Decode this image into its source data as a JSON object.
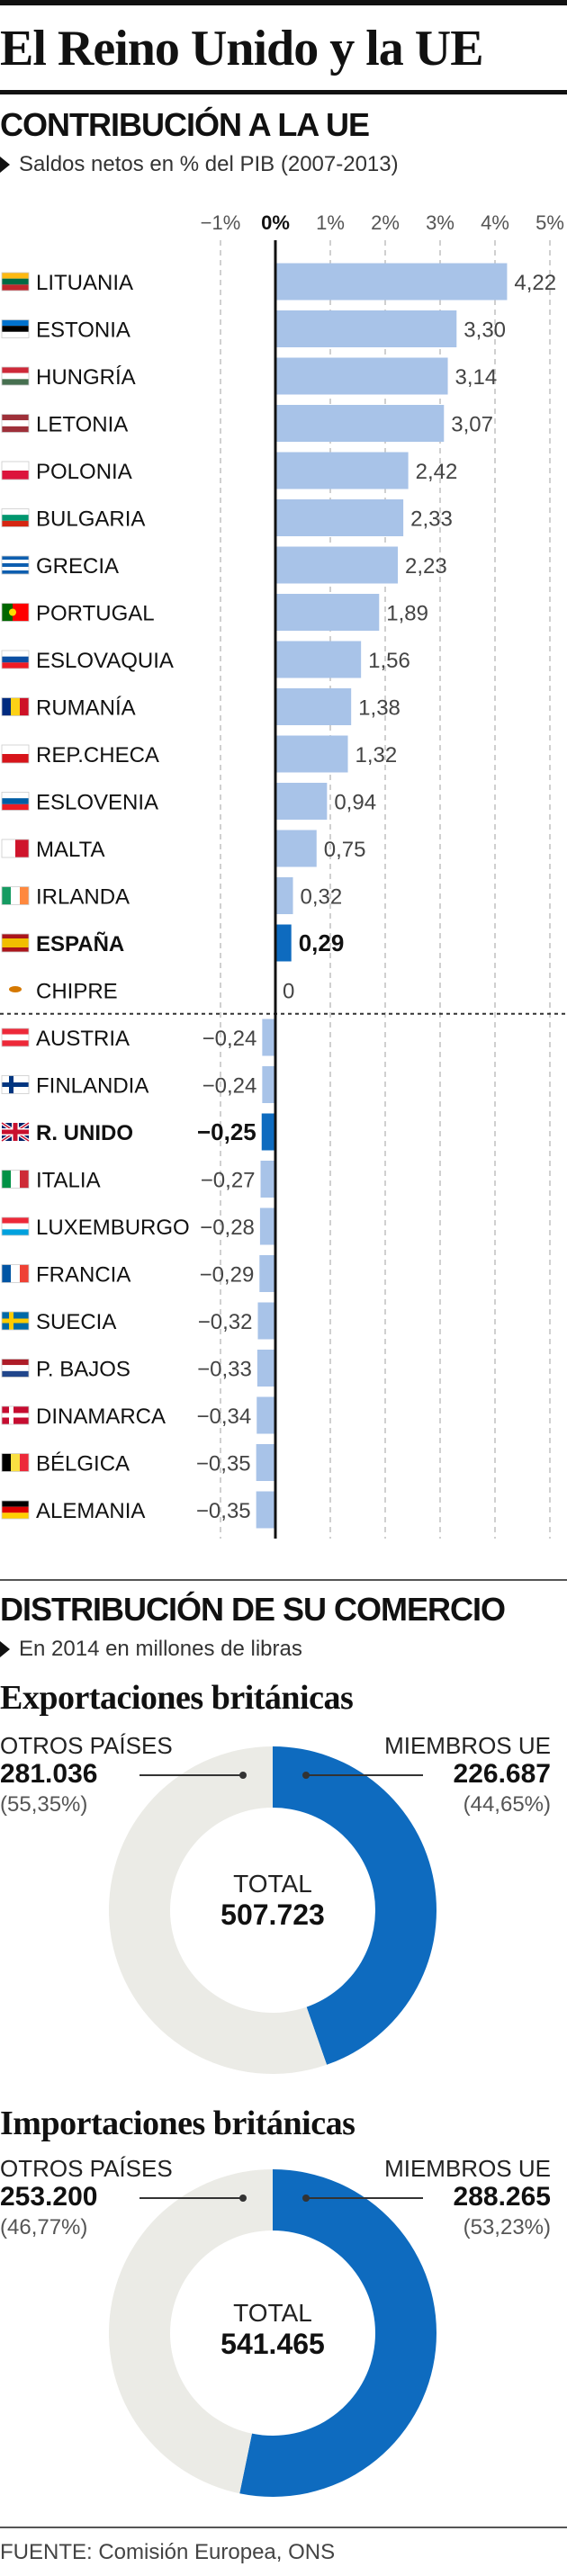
{
  "headline": "El Reino Unido y la UE",
  "contribution": {
    "title": "CONTRIBUCIÓN A LA UE",
    "subtitle": "Saldos netos en % del PIB (2007-2013)"
  },
  "colors": {
    "bar": "#a8c3e8",
    "highlight": "#0e6bbf",
    "grid": "#d0d0d0",
    "donut_main": "#0e6bbf",
    "donut_rest": "#ebebe6"
  },
  "chart_data": [
    {
      "type": "bar",
      "orientation": "horizontal",
      "title": "CONTRIBUCIÓN A LA UE",
      "subtitle": "Saldos netos en % del PIB (2007-2013)",
      "xlim": [
        -1,
        5
      ],
      "ticks": [
        -1,
        0,
        1,
        2,
        3,
        4,
        5
      ],
      "tick_labels": [
        "−1%",
        "0%",
        "1%",
        "2%",
        "3%",
        "4%",
        "5%"
      ],
      "grid": true,
      "categories": [
        "LITUANIA",
        "ESTONIA",
        "HUNGRÍA",
        "LETONIA",
        "POLONIA",
        "BULGARIA",
        "GRECIA",
        "PORTUGAL",
        "ESLOVAQUIA",
        "RUMANÍA",
        "REP.CHECA",
        "ESLOVENIA",
        "MALTA",
        "IRLANDA",
        "ESPAÑA",
        "CHIPRE",
        "AUSTRIA",
        "FINLANDIA",
        "R. UNIDO",
        "ITALIA",
        "LUXEMBURGO",
        "FRANCIA",
        "SUECIA",
        "P. BAJOS",
        "DINAMARCA",
        "BÉLGICA",
        "ALEMANIA"
      ],
      "values": [
        4.22,
        3.3,
        3.14,
        3.07,
        2.42,
        2.33,
        2.23,
        1.89,
        1.56,
        1.38,
        1.32,
        0.94,
        0.75,
        0.32,
        0.29,
        0,
        -0.24,
        -0.24,
        -0.25,
        -0.27,
        -0.28,
        -0.29,
        -0.32,
        -0.33,
        -0.34,
        -0.35,
        -0.35
      ],
      "value_labels": [
        "4,22",
        "3,30",
        "3,14",
        "3,07",
        "2,42",
        "2,33",
        "2,23",
        "1,89",
        "1,56",
        "1,38",
        "1,32",
        "0,94",
        "0,75",
        "0,32",
        "0,29",
        "0",
        "−0,24",
        "−0,24",
        "−0,25",
        "−0,27",
        "−0,28",
        "−0,29",
        "−0,32",
        "−0,33",
        "−0,34",
        "−0,35",
        "−0,35"
      ],
      "highlighted": [
        "ESPAÑA",
        "R. UNIDO"
      ],
      "flags": [
        "lithuania-flag",
        "estonia-flag",
        "hungary-flag",
        "latvia-flag",
        "poland-flag",
        "bulgaria-flag",
        "greece-flag",
        "portugal-flag",
        "slovakia-flag",
        "romania-flag",
        "czech-flag",
        "slovenia-flag",
        "malta-flag",
        "ireland-flag",
        "spain-flag",
        "cyprus-flag",
        "austria-flag",
        "finland-flag",
        "uk-flag",
        "italy-flag",
        "luxembourg-flag",
        "france-flag",
        "sweden-flag",
        "netherlands-flag",
        "denmark-flag",
        "belgium-flag",
        "germany-flag"
      ]
    },
    {
      "type": "pie",
      "variant": "donut",
      "title": "Exportaciones británicas",
      "slices": [
        {
          "name": "MIEMBROS UE",
          "value": 226687,
          "value_label": "226.687",
          "pct_label": "(44,65%)"
        },
        {
          "name": "OTROS PAÍSES",
          "value": 281036,
          "value_label": "281.036",
          "pct_label": "(55,35%)"
        }
      ],
      "total_label": "TOTAL",
      "total_value": "507.723"
    },
    {
      "type": "pie",
      "variant": "donut",
      "title": "Importaciones británicas",
      "slices": [
        {
          "name": "MIEMBROS UE",
          "value": 288265,
          "value_label": "288.265",
          "pct_label": "(53,23%)"
        },
        {
          "name": "OTROS PAÍSES",
          "value": 253200,
          "value_label": "253.200",
          "pct_label": "(46,77%)"
        }
      ],
      "total_label": "TOTAL",
      "total_value": "541.465"
    }
  ],
  "trade": {
    "title": "DISTRIBUCIÓN DE SU COMERCIO",
    "subtitle": "En 2014 en millones de libras"
  },
  "source": "FUENTE: Comisión Europea, ONS"
}
